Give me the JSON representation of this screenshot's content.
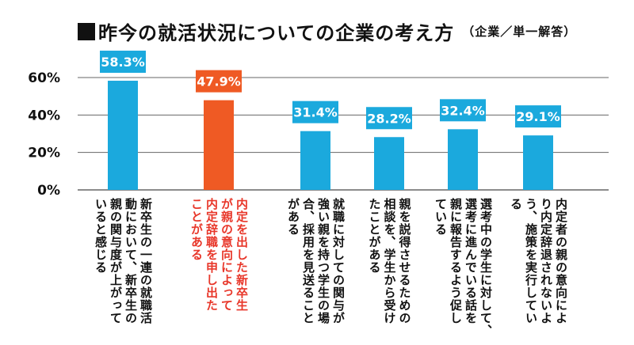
{
  "title": "昨今の就活状況についての企業の考え方",
  "subtitle": "（企業／単一解答）",
  "chart_data": {
    "type": "bar",
    "categories": [
      "新卒生の一連の就職活動において、新卒生の親の関与度が上がっていると感じる",
      "内定を出した新卒生が親の意向によって内定辞職を申し出たことがある",
      "就職に対しての関与が強い親を持つ学生の場合、採用を見送ることがある",
      "親を説得させるための相談を、学生から受けたことがある",
      "選考中の学生に対して、選考に進んでいる話を親に報告するよう促している",
      "内定者の親の意向により内定辞退されないよう、施策を実行している"
    ],
    "category_lines": [
      [
        "新卒生の一連の就職活",
        "動において、新卒生の",
        "親の関与度が上がって",
        "いると感じる"
      ],
      [
        "内定を出した新卒生",
        "が親の意向によって",
        "内定辞職を申し出た",
        "ことがある"
      ],
      [
        "就職に対しての関与が",
        "強い親を持つ学生の場",
        "合、採用を見送ること",
        "がある"
      ],
      [
        "親を説得させるための",
        "相談を、学生から受け",
        "たことがある"
      ],
      [
        "選考中の学生に対して、",
        "選考に進んでいる話を",
        "親に報告するよう促し",
        "ている"
      ],
      [
        "内定者の親の意向によ",
        "り内定辞退されないよ",
        "う、施策を実行してい",
        "る"
      ]
    ],
    "values": [
      58.3,
      47.9,
      31.4,
      28.2,
      32.4,
      29.1
    ],
    "value_labels": [
      "58.3%",
      "47.9%",
      "31.4%",
      "28.2%",
      "32.4%",
      "29.1%"
    ],
    "highlight_index": 1,
    "y_ticks": [
      "0%",
      "20%",
      "40%",
      "60%"
    ],
    "y_tick_values": [
      0,
      20,
      40,
      60
    ],
    "ylim": [
      0,
      60
    ],
    "grid": true,
    "colors": {
      "bar": "#1ba9dd",
      "highlight": "#ef5a24",
      "highlight_text": "#e8372a",
      "grid": "#666666",
      "axis_text": "#111111"
    }
  }
}
